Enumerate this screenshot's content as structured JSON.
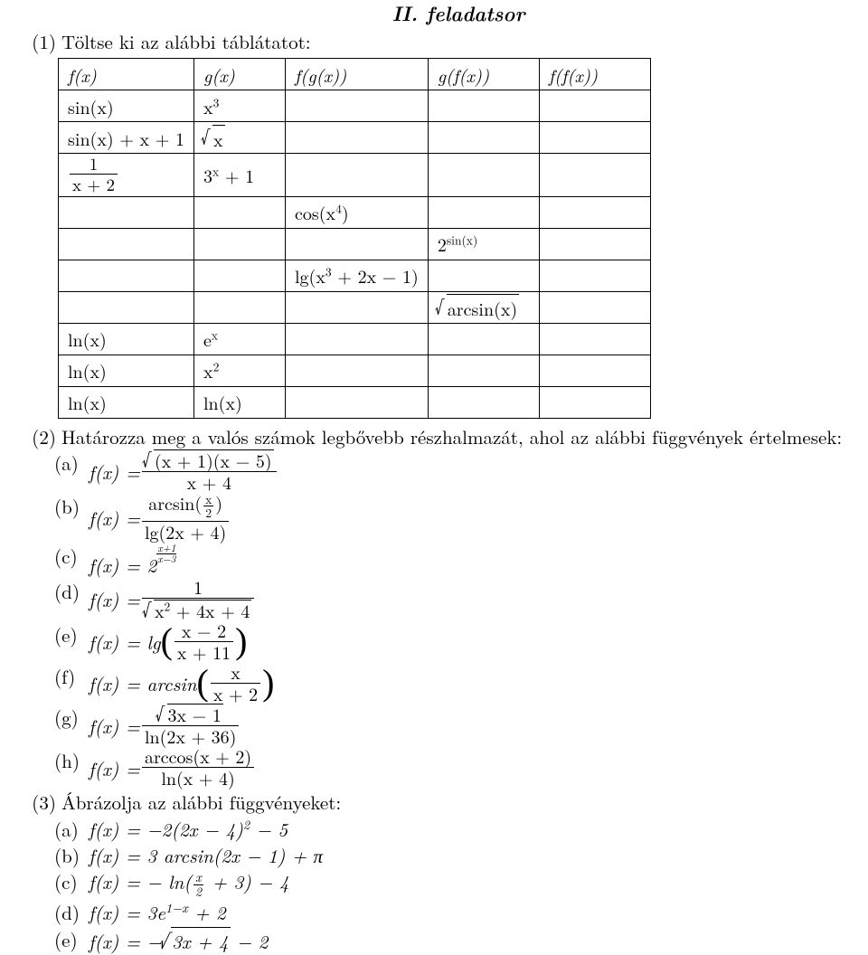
{
  "title": "II. feladatsor",
  "q1": {
    "num": "(1)",
    "text": "Töltse ki az alábbi táblátatot:",
    "headers": {
      "fx": "f(x)",
      "gx": "g(x)",
      "fgx": "f(g(x))",
      "gfx": "g(f(x))",
      "ffx": "f(f(x))"
    },
    "cells": {
      "r1a": "sin(x)",
      "r1b_html": "x<sup>3</sup>",
      "r2a_html": "sin(x) + x + 1",
      "r2b_html": "<span class='sqrt'><span class='rad'>x</span></span>",
      "r3a_html": "<span class='frac'><span class='n'>1</span><span class='d'>x + 2</span></span>",
      "r3b_html": "3<sup>x</sup> + 1",
      "r4c_html": "cos(x<sup>4</sup>)",
      "r5d_html": "2<sup>sin(x)</sup>",
      "r6c_html": "lg(x<sup>3</sup> + 2x − 1)",
      "r7d_html": "<span class='sqrt'><span class='rad'>arcsin(x)</span></span>",
      "r8a": "ln(x)",
      "r8b_html": "e<sup>x</sup>",
      "r9a": "ln(x)",
      "r9b_html": "x<sup>2</sup>",
      "r10a": "ln(x)",
      "r10b": "ln(x)"
    }
  },
  "q2": {
    "num": "(2)",
    "text": "Határozza meg a valós számok legbővebb részhalmazát, ahol az alábbi függvények értelmesek:",
    "a": {
      "lbl": "(a)",
      "lhs": "f(x) = ",
      "rhs_html": "<span class='frac'><span class='n'><span class='sqrt'><span class='rad'>(x + 1)(x − 5)</span></span></span><span class='d'>x + 4</span></span>"
    },
    "b": {
      "lbl": "(b)",
      "lhs": "f(x) = ",
      "rhs_html": "<span class='frac'><span class='n'>arcsin(<span class='frac fracS'><span class='n'>x</span><span class='d'>2</span></span>)</span><span class='d'>lg(2x + 4)</span></span>"
    },
    "c": {
      "lbl": "(c)",
      "lhs_html": "f(x) = 2<span class='supfrac'><span class='n'>x+1</span><span class='d'>x−3</span></span>"
    },
    "d": {
      "lbl": "(d)",
      "lhs": "f(x) = ",
      "rhs_html": "<span class='frac'><span class='n'>1</span><span class='d'><span class='sqrt'><span class='rad'>x<sup>2</sup> + 4x + 4</span></span></span></span>"
    },
    "e": {
      "lbl": "(e)",
      "lhs": "f(x) = lg ",
      "rhs_html": "<span class='bigparen'>(</span><span class='frac'><span class='n'>x − 2</span><span class='d'>x + 11</span></span><span class='bigparen'>)</span>"
    },
    "f": {
      "lbl": "(f)",
      "lhs": "f(x) = arcsin ",
      "rhs_html": "<span class='bigparen'>(</span><span class='frac'><span class='n'>x</span><span class='d'>x + 2</span></span><span class='bigparen'>)</span>"
    },
    "g": {
      "lbl": "(g)",
      "lhs": "f(x) = ",
      "rhs_html": "<span class='frac'><span class='n'><span class='sqrt'><span class='rad'>3x − 1</span></span></span><span class='d'>ln(2x + 36)</span></span>"
    },
    "h": {
      "lbl": "(h)",
      "lhs": "f(x) = ",
      "rhs_html": "<span class='frac'><span class='n'>arccos(x + 2)</span><span class='d'>ln(x + 4)</span></span>"
    }
  },
  "q3": {
    "num": "(3)",
    "text": "Ábrázolja az alábbi függvényeket:",
    "a": {
      "lbl": "(a)",
      "expr_html": "f(x) = −2(2x − 4)<sup>2</sup> − 5"
    },
    "b": {
      "lbl": "(b)",
      "expr_html": "f(x) = 3 arcsin(2x − 1) + π"
    },
    "c": {
      "lbl": "(c)",
      "expr_html": "f(x) = − ln(<span class='frac fracS'><span class='n'>x</span><span class='d'>2</span></span> + 3) − 4"
    },
    "d": {
      "lbl": "(d)",
      "expr_html": "f(x) = 3e<sup>1−x</sup> + 2"
    },
    "e": {
      "lbl": "(e)",
      "expr_html": "f(x) = −<span class='sqrt'><span class='rad'>3x + 4</span></span> − 2"
    }
  }
}
